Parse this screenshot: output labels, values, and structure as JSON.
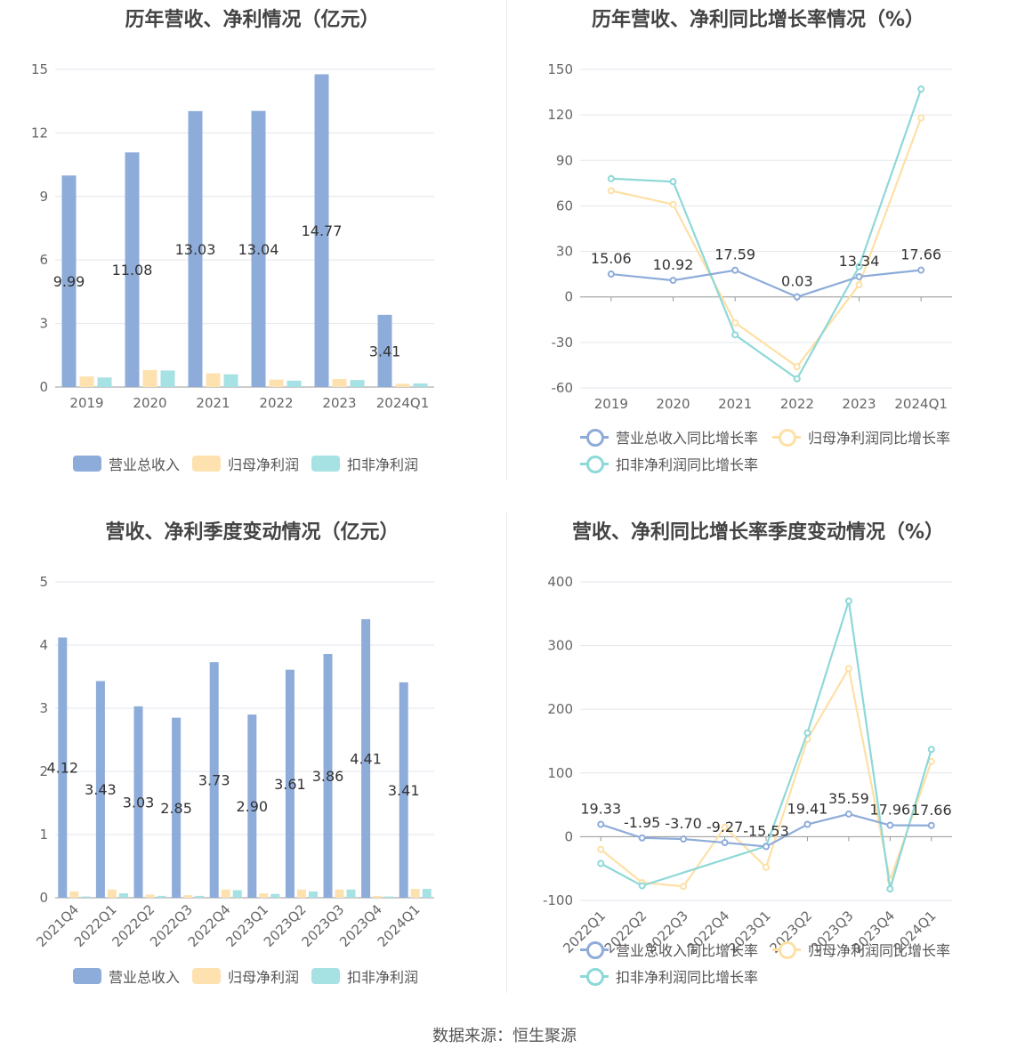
{
  "colors": {
    "revenue": "#8eacd9",
    "net_profit": "#fde2b0",
    "deducted": "#a6e1e3",
    "rev_line": "#8eacd9",
    "np_line": "#fde0a6",
    "ded_line": "#8ed8d8"
  },
  "source": "数据来源：恒生聚源",
  "chart_data": [
    {
      "type": "bar",
      "title": "历年营收、净利情况（亿元）",
      "categories": [
        "2019",
        "2020",
        "2021",
        "2022",
        "2023",
        "2024Q1"
      ],
      "series": [
        {
          "name": "营业总收入",
          "values": [
            9.99,
            11.08,
            13.03,
            13.04,
            14.77,
            3.41
          ],
          "labels": [
            "9.99",
            "11.08",
            "13.03",
            "13.04",
            "14.77",
            "3.41"
          ]
        },
        {
          "name": "归母净利润",
          "values": [
            0.5,
            0.8,
            0.65,
            0.35,
            0.38,
            0.15
          ]
        },
        {
          "name": "扣非净利润",
          "values": [
            0.45,
            0.78,
            0.6,
            0.3,
            0.33,
            0.17
          ]
        }
      ],
      "yticks": [
        "0",
        "3",
        "6",
        "9",
        "12",
        "15"
      ],
      "ylim": [
        0,
        15
      ]
    },
    {
      "type": "line",
      "title": "历年营收、净利同比增长率情况（%）",
      "categories": [
        "2019",
        "2020",
        "2021",
        "2022",
        "2023",
        "2024Q1"
      ],
      "series": [
        {
          "name": "营业总收入同比增长率",
          "values": [
            15.06,
            10.92,
            17.59,
            0.03,
            13.34,
            17.66
          ],
          "labels": [
            "15.06",
            "10.92",
            "17.59",
            "0.03",
            "13.34",
            "17.66"
          ]
        },
        {
          "name": "归母净利润同比增长率",
          "values": [
            70,
            61,
            -17,
            -46,
            8,
            118
          ]
        },
        {
          "name": "扣非净利润同比增长率",
          "values": [
            78,
            76,
            -25,
            -54,
            20,
            137
          ]
        }
      ],
      "yticks": [
        "-60",
        "-30",
        "0",
        "30",
        "60",
        "90",
        "120",
        "150"
      ],
      "ylim": [
        -60,
        150
      ]
    },
    {
      "type": "bar",
      "title": "营收、净利季度变动情况（亿元）",
      "categories": [
        "2021Q4",
        "2022Q1",
        "2022Q2",
        "2022Q3",
        "2022Q4",
        "2023Q1",
        "2023Q2",
        "2023Q3",
        "2023Q4",
        "2024Q1"
      ],
      "series": [
        {
          "name": "营业总收入",
          "values": [
            4.12,
            3.43,
            3.03,
            2.85,
            3.73,
            2.9,
            3.61,
            3.86,
            4.41,
            3.41
          ],
          "labels": [
            "4.12",
            "3.43",
            "3.03",
            "2.85",
            "3.73",
            "2.90",
            "3.61",
            "3.86",
            "4.41",
            "3.41"
          ]
        },
        {
          "name": "归母净利润",
          "values": [
            0.1,
            0.13,
            0.05,
            0.04,
            0.13,
            0.07,
            0.13,
            0.13,
            0.03,
            0.14
          ]
        },
        {
          "name": "扣非净利润",
          "values": [
            0.02,
            0.07,
            0.03,
            0.03,
            0.12,
            0.06,
            0.1,
            0.13,
            0.02,
            0.14
          ]
        }
      ],
      "yticks": [
        "0",
        "1",
        "2",
        "3",
        "4",
        "5"
      ],
      "ylim": [
        0,
        5
      ]
    },
    {
      "type": "line",
      "title": "营收、净利同比增长率季度变动情况（%）",
      "categories": [
        "2022Q1",
        "2022Q2",
        "2022Q3",
        "2022Q4",
        "2023Q1",
        "2023Q2",
        "2023Q3",
        "2023Q4",
        "2024Q1"
      ],
      "series": [
        {
          "name": "营业总收入同比增长率",
          "values": [
            19.33,
            -1.95,
            -3.7,
            -9.27,
            -15.53,
            19.41,
            35.59,
            17.96,
            17.66
          ],
          "labels": [
            "19.33",
            "-1.95",
            "-3.70",
            "-9.27",
            "-15.53",
            "19.41",
            "35.59",
            "17.96",
            "17.66"
          ]
        },
        {
          "name": "归母净利润同比增长率",
          "values": [
            -20,
            -72,
            -78,
            15,
            -48,
            153,
            264,
            -68,
            118
          ]
        },
        {
          "name": "扣非净利润同比增长率",
          "values": [
            -42,
            -77,
            null,
            null,
            -15,
            163,
            370,
            -82,
            137
          ]
        }
      ],
      "yticks": [
        "-100",
        "0",
        "100",
        "200",
        "300",
        "400"
      ],
      "ylim": [
        -100,
        400
      ]
    }
  ]
}
